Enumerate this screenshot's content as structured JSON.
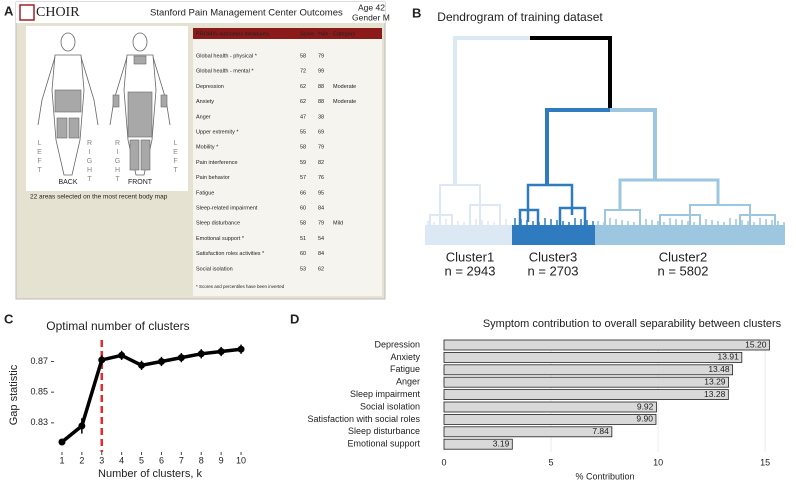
{
  "panel_labels": [
    "A",
    "B",
    "C",
    "D"
  ],
  "screenshot": {
    "logo": "CHOIR",
    "title": "Stanford Pain Management Center Outcomes",
    "age": "Age 42",
    "gender": "Gender M",
    "body_map": {
      "left": "LEFT",
      "right": "RIGHT",
      "back": "BACK",
      "front": "FRONT",
      "caption": "22 areas selected on the most recent body map"
    },
    "table": {
      "header": [
        "PROMIS outcomes measures",
        "Score",
        "%ile",
        "Category"
      ],
      "rows": [
        [
          "Global health - physical *",
          58,
          79
        ],
        [
          "Global health - mental *",
          72,
          99
        ],
        [
          "Depression",
          62,
          88,
          "Moderate"
        ],
        [
          "Anxiety",
          62,
          88,
          "Moderate"
        ],
        [
          "Anger",
          47,
          38
        ],
        [
          "Upper extremity *",
          55,
          69
        ],
        [
          "Mobility *",
          58,
          79
        ],
        [
          "Pain interference",
          59,
          82
        ],
        [
          "Pain behavior",
          57,
          76
        ],
        [
          "Fatigue",
          66,
          95
        ],
        [
          "Sleep-related impairment",
          60,
          84
        ],
        [
          "Sleep disturbance",
          58,
          79,
          "Mild"
        ],
        [
          "Emotional support *",
          51,
          54
        ],
        [
          "Satisfaction roles activities *",
          60,
          84
        ],
        [
          "Social isolation",
          53,
          62
        ]
      ],
      "footnote": "* Scores and percentiles have been inverted"
    }
  },
  "chart_data": [
    {
      "type": "dendrogram",
      "title": "Dendrogram of training dataset",
      "categories": [
        "Cluster1",
        "Cluster3",
        "Cluster2"
      ],
      "values": [
        2943,
        2703,
        5802
      ],
      "value_labels": [
        "n = 2943",
        "n = 2703",
        "n = 5802"
      ],
      "colors": [
        "#dce8f4",
        "#2e7cbf",
        "#9dc6e1"
      ]
    },
    {
      "type": "line",
      "title": "Optimal number of clusters",
      "xlabel": "Number of clusters, k",
      "ylabel": "Gap statistic",
      "x": [
        1,
        2,
        3,
        4,
        5,
        6,
        7,
        8,
        9,
        10
      ],
      "values": [
        0.8175,
        0.828,
        0.871,
        0.874,
        0.8675,
        0.87,
        0.8725,
        0.875,
        0.8765,
        0.878
      ],
      "errors": [
        0.002,
        0.005,
        0.003,
        0.003,
        0.003,
        0.003,
        0.003,
        0.003,
        0.003,
        0.003
      ],
      "color": "#000000",
      "vline": 3,
      "vline_color": "#e8282b",
      "xlim": [
        0.6,
        10.4
      ],
      "xticks": [
        1,
        2,
        3,
        4,
        5,
        6,
        7,
        8,
        9,
        10
      ],
      "ylim": [
        0.811,
        0.884
      ],
      "yticks": [
        0.83,
        0.85,
        0.87
      ]
    },
    {
      "type": "hbar",
      "title": "Symptom contribution to overall separability between clusters",
      "xlabel": "% Contribution",
      "categories": [
        "Depression",
        "Anxiety",
        "Fatigue",
        "Anger",
        "Sleep impairment",
        "Social isolation",
        "Satisfaction with social roles",
        "Sleep disturbance",
        "Emotional support"
      ],
      "values": [
        15.2,
        13.91,
        13.48,
        13.29,
        13.28,
        9.92,
        9.9,
        7.84,
        3.19
      ],
      "value_labels": [
        "15.20",
        "13.91",
        "13.48",
        "13.29",
        "13.28",
        "9.92",
        "9.90",
        "7.84",
        "3.19"
      ],
      "color": "#d9d9d9",
      "xlim": [
        0,
        16.3
      ],
      "xticks": [
        0,
        5,
        10,
        15
      ],
      "grid": true
    }
  ]
}
